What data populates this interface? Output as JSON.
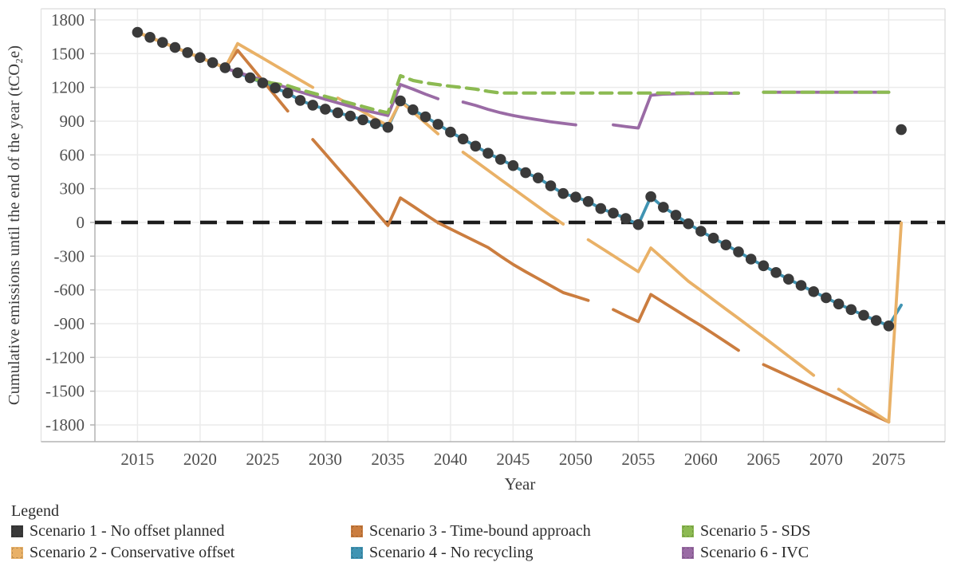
{
  "legend": {
    "title": "Legend",
    "items": [
      {
        "label": "Scenario 1 - No offset planned"
      },
      {
        "label": "Scenario 2 - Conservative offset"
      },
      {
        "label": "Scenario 3 - Time-bound approach"
      },
      {
        "label": "Scenario 4 - No recycling"
      },
      {
        "label": "Scenario 5 - SDS"
      },
      {
        "label": "Scenario 6 - IVC"
      }
    ]
  },
  "chart_data": {
    "type": "line",
    "title": "",
    "xlabel": "Year",
    "ylabel": "Cumulative emissions until the end of the year (tCO₂e)",
    "xticks": [
      2015,
      2020,
      2025,
      2030,
      2035,
      2040,
      2045,
      2050,
      2055,
      2060,
      2065,
      2070,
      2075
    ],
    "yticks": [
      1800,
      1500,
      1200,
      900,
      600,
      300,
      0,
      -300,
      -600,
      -900,
      -1200,
      -1500,
      -1800
    ],
    "ylim": [
      -1800,
      1800
    ],
    "xlim": [
      2015,
      2076
    ],
    "grid": true,
    "legend_position": "bottom",
    "zero_line": {
      "value": 0,
      "style": "dashed",
      "color": "#1c1c1c"
    },
    "x": [
      2015,
      2016,
      2017,
      2018,
      2019,
      2020,
      2021,
      2022,
      2023,
      2024,
      2025,
      2026,
      2027,
      2028,
      2029,
      2030,
      2031,
      2032,
      2033,
      2034,
      2035,
      2036,
      2037,
      2038,
      2039,
      2040,
      2041,
      2042,
      2043,
      2044,
      2045,
      2046,
      2047,
      2048,
      2049,
      2050,
      2051,
      2052,
      2053,
      2054,
      2055,
      2056,
      2057,
      2058,
      2059,
      2060,
      2061,
      2062,
      2063,
      2064,
      2065,
      2066,
      2067,
      2068,
      2069,
      2070,
      2071,
      2072,
      2073,
      2074,
      2075,
      2076
    ],
    "series": [
      {
        "name": "Scenario 1 - No offset planned",
        "color": "#3a3a3a",
        "kind": "markers",
        "values": [
          1690,
          1645,
          1600,
          1555,
          1510,
          1465,
          1420,
          1375,
          1330,
          1285,
          1240,
          1195,
          1150,
          1085,
          1042,
          1007,
          975,
          945,
          912,
          878,
          845,
          1080,
          1001,
          938,
          872,
          803,
          742,
          678,
          615,
          560,
          505,
          442,
          395,
          325,
          257,
          225,
          186,
          123,
          83,
          35,
          -19,
          229,
          135,
          64,
          -12,
          -78,
          -140,
          -200,
          -262,
          -326,
          -385,
          -445,
          -505,
          -560,
          -615,
          -670,
          -725,
          -775,
          -825,
          -872,
          -920,
          825
        ]
      },
      {
        "name": "Scenario 2 - Conservative offset",
        "color": "#e9b167",
        "kind": "line",
        "values": [
          1690,
          1645,
          1600,
          1555,
          1510,
          1465,
          1420,
          1375,
          1590,
          1525,
          1460,
          1395,
          1330,
          1265,
          1200,
          null,
          1105,
          1045,
          985,
          922,
          860,
          1078,
          981,
          884,
          787,
          null,
          624,
          544,
          463,
          382,
          301,
          220,
          140,
          60,
          -15,
          null,
          -154,
          -225,
          -296,
          -367,
          -438,
          -227,
          -325,
          -424,
          -523,
          -605,
          -688,
          -771,
          -853,
          -936,
          -1019,
          -1104,
          -1189,
          -1274,
          -1359,
          null,
          -1483,
          -1556,
          -1629,
          -1701,
          -1774,
          -5
        ]
      },
      {
        "name": "Scenario 3 - Time-bound approach",
        "color": "#cb7d3f",
        "kind": "line",
        "values": [
          1690,
          1645,
          1600,
          1555,
          1510,
          1465,
          1420,
          1375,
          1530,
          1395,
          1260,
          1125,
          990,
          null,
          737,
          610,
          482,
          355,
          227,
          100,
          -28,
          218,
          145,
          70,
          -2,
          -58,
          -113,
          -168,
          -223,
          -300,
          -374,
          -438,
          -500,
          -562,
          -624,
          -658,
          -693,
          null,
          -775,
          -830,
          -882,
          -640,
          -710,
          -780,
          -850,
          -917,
          -990,
          -1063,
          -1137,
          null,
          -1264,
          -1315,
          -1366,
          -1417,
          -1468,
          -1519,
          -1570,
          -1621,
          -1672,
          -1723,
          -1774,
          null
        ]
      },
      {
        "name": "Scenario 4 - No recycling",
        "color": "#4094b3",
        "kind": "line",
        "values": [
          1690,
          1645,
          1600,
          1555,
          1510,
          1465,
          1420,
          1375,
          1330,
          1285,
          1240,
          1195,
          1150,
          1085,
          1042,
          1007,
          975,
          945,
          912,
          878,
          845,
          1080,
          1001,
          938,
          872,
          803,
          742,
          678,
          615,
          560,
          505,
          442,
          395,
          325,
          257,
          225,
          186,
          123,
          83,
          35,
          -19,
          229,
          135,
          64,
          -12,
          -78,
          -140,
          -200,
          -262,
          -326,
          -385,
          -445,
          -505,
          -560,
          -615,
          -670,
          -725,
          -775,
          -825,
          -872,
          -920,
          -735
        ]
      },
      {
        "name": "Scenario 5 - SDS",
        "color": "#8cba52",
        "kind": "dashed",
        "values": [
          null,
          null,
          null,
          null,
          null,
          null,
          null,
          null,
          null,
          1285,
          1252,
          1234,
          1215,
          1180,
          1150,
          1120,
          1090,
          1060,
          1030,
          1000,
          974,
          1304,
          1262,
          1240,
          1225,
          1210,
          1198,
          1185,
          1165,
          1150,
          1150,
          1150,
          1150,
          1150,
          1150,
          1150,
          1150,
          1150,
          1150,
          1150,
          1150,
          1150,
          1150,
          1150,
          1150,
          1150,
          1150,
          1150,
          1150,
          null,
          1157,
          1157,
          1157,
          1157,
          1157,
          1157,
          1157,
          1157,
          1157,
          1157,
          1157,
          null
        ]
      },
      {
        "name": "Scenario 6 - IVC",
        "color": "#9a6ba5",
        "kind": "line",
        "values": [
          null,
          null,
          null,
          null,
          null,
          null,
          null,
          1372,
          1335,
          1300,
          1265,
          1230,
          1195,
          1160,
          1127,
          1095,
          1063,
          1031,
          1000,
          975,
          950,
          1226,
          1185,
          1140,
          1099,
          null,
          1070,
          1040,
          1005,
          975,
          950,
          930,
          912,
          895,
          880,
          867,
          null,
          null,
          867,
          852,
          839,
          1130,
          1140,
          1143,
          1145,
          1145,
          1147,
          1148,
          1148,
          null,
          1157,
          1157,
          1157,
          1157,
          1157,
          1157,
          1157,
          1157,
          1157,
          1157,
          1157,
          null
        ]
      }
    ]
  }
}
